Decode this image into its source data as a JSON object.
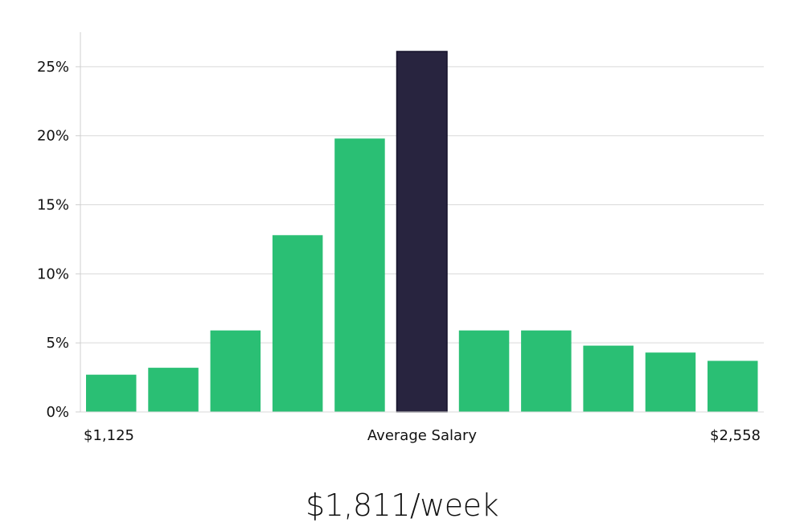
{
  "colors": {
    "bar": "#2abf74",
    "highlight": "#28243f",
    "grid": "#d9d9d9",
    "axis": "#cfcfcf"
  },
  "headline": "$1,811/week",
  "chart_data": {
    "type": "bar",
    "title": "",
    "xlabel": "",
    "ylabel": "",
    "values": [
      2.7,
      3.2,
      5.9,
      12.8,
      19.8,
      26.1,
      5.9,
      5.9,
      4.8,
      4.3,
      3.7
    ],
    "highlight_index": 5,
    "ylim": [
      0,
      27.5
    ],
    "yticks": [
      0,
      5,
      10,
      15,
      20,
      25
    ],
    "ytick_labels": [
      "0%",
      "5%",
      "10%",
      "15%",
      "20%",
      "25%"
    ],
    "grid": true,
    "x_labels": {
      "left": "$1,125",
      "center": "Average Salary",
      "right": "$2,558"
    }
  }
}
